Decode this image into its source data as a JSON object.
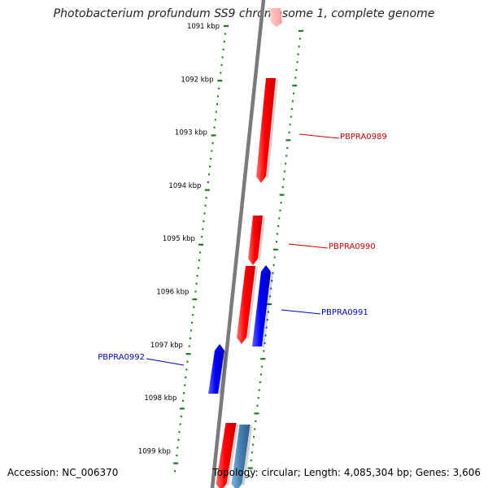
{
  "title": "Photobacterium profundum SS9 chromosome 1, complete genome",
  "footer": {
    "accession": "Accession: NC_006370",
    "info": "Topology: circular; Length: 4,085,304 bp; Genes: 3,606"
  },
  "colors": {
    "backbone": "#808080",
    "tick": "#1a7a1a",
    "forward_gene": "#ff0000",
    "reverse_gene": "#0000ff",
    "rna_gene": "#4682b4",
    "label_forward": "#cc0000",
    "label_reverse": "#0000cc"
  },
  "kbp_labels": [
    "1091 kbp",
    "1092 kbp",
    "1093 kbp",
    "1094 kbp",
    "1095 kbp",
    "1096 kbp",
    "1097 kbp",
    "1098 kbp",
    "1099 kbp"
  ],
  "gene_labels": [
    {
      "name": "PBPRA0989",
      "strand": "forward"
    },
    {
      "name": "PBPRA0990",
      "strand": "forward"
    },
    {
      "name": "PBPRA0991",
      "strand": "reverse"
    },
    {
      "name": "PBPRA0992",
      "strand": "reverse"
    }
  ]
}
